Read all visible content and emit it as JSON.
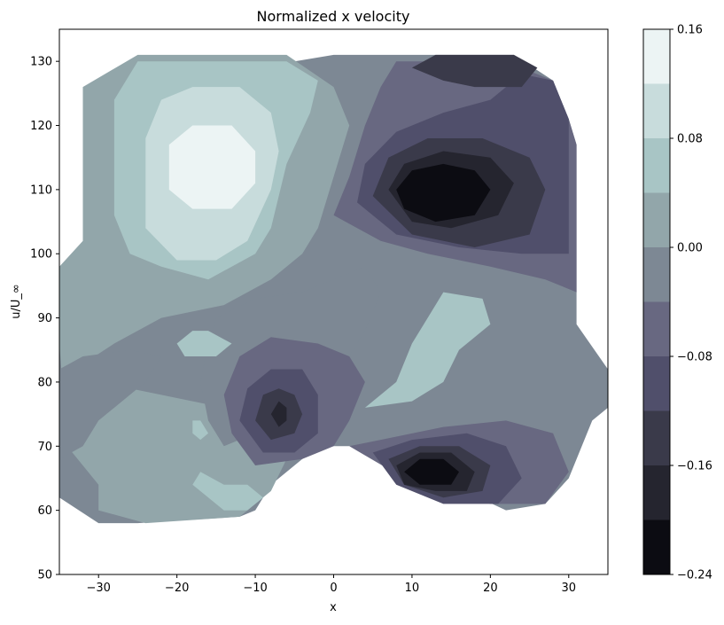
{
  "chart_data": {
    "type": "heatmap",
    "subtype": "filled-contour",
    "title": "Normalized x velocity",
    "xlabel": "x",
    "ylabel": "u/U_∞",
    "xlim": [
      -35,
      35
    ],
    "ylim": [
      50,
      135
    ],
    "xticks": [
      -30,
      -20,
      -10,
      0,
      10,
      20,
      30
    ],
    "yticks": [
      50,
      60,
      70,
      80,
      90,
      100,
      110,
      120,
      130
    ],
    "colormap": "bone",
    "colorbar": {
      "range": [
        -0.24,
        0.16
      ],
      "levels": [
        -0.24,
        -0.2,
        -0.16,
        -0.12,
        -0.08,
        -0.04,
        0.0,
        0.04,
        0.08,
        0.12,
        0.16
      ],
      "tick_values": [
        -0.24,
        -0.16,
        -0.08,
        0.0,
        0.08,
        0.16
      ],
      "tick_labels": [
        "−0.24",
        "−0.16",
        "−0.08",
        "0.00",
        "0.08",
        "0.16"
      ],
      "colors": [
        "#0c0c12",
        "#25252f",
        "#3a3a4a",
        "#504f6b",
        "#686881",
        "#7d8894",
        "#92a6aa",
        "#a8c5c5",
        "#c8dcdc",
        "#ecf4f4"
      ]
    },
    "regions": [
      {
        "name": "domain",
        "value": -0.02,
        "points": [
          [
            -35,
            86
          ],
          [
            -32,
            88
          ],
          [
            -32,
            92
          ],
          [
            -30,
            96
          ],
          [
            -32,
            100
          ],
          [
            -32,
            104
          ],
          [
            -30,
            105
          ],
          [
            -30,
            124
          ],
          [
            -27,
            128
          ],
          [
            -25,
            130
          ],
          [
            -5,
            130
          ],
          [
            0,
            131
          ],
          [
            23,
            131
          ],
          [
            28,
            127
          ],
          [
            30,
            121
          ],
          [
            31,
            117
          ],
          [
            31,
            89
          ],
          [
            35,
            82
          ],
          [
            35,
            76
          ],
          [
            33,
            74
          ],
          [
            30,
            65
          ],
          [
            27,
            61
          ],
          [
            22,
            60
          ],
          [
            15,
            64
          ],
          [
            10,
            64
          ],
          [
            5,
            70
          ],
          [
            0,
            70
          ],
          [
            -2,
            70
          ],
          [
            -8,
            64
          ],
          [
            -10,
            60
          ],
          [
            -12,
            59
          ],
          [
            -25,
            58
          ],
          [
            -30,
            58
          ],
          [
            -35,
            62
          ]
        ]
      },
      {
        "name": "west-band",
        "value": 0.02,
        "points": [
          [
            -35,
            80
          ],
          [
            -33,
            82
          ],
          [
            -28,
            86
          ],
          [
            -22,
            90
          ],
          [
            -14,
            92
          ],
          [
            -8,
            96
          ],
          [
            -4,
            100
          ],
          [
            -2,
            104
          ],
          [
            0,
            112
          ],
          [
            2,
            120
          ],
          [
            0,
            126
          ],
          [
            -6,
            131
          ],
          [
            -25,
            131
          ],
          [
            -32,
            126
          ],
          [
            -32,
            102
          ],
          [
            -35,
            98
          ],
          [
            -35,
            86
          ],
          [
            -34,
            70
          ],
          [
            -30,
            64
          ],
          [
            -30,
            60
          ],
          [
            -24,
            58
          ],
          [
            -12,
            59
          ],
          [
            -8,
            63
          ],
          [
            -6,
            68
          ],
          [
            -8,
            72
          ],
          [
            -14,
            76
          ],
          [
            -22,
            78
          ],
          [
            -30,
            80
          ]
        ]
      },
      {
        "name": "upper-left-plume",
        "value": 0.06,
        "points": [
          [
            -28,
            106
          ],
          [
            -28,
            124
          ],
          [
            -25,
            130
          ],
          [
            -6,
            130
          ],
          [
            -2,
            127
          ],
          [
            -3,
            122
          ],
          [
            -6,
            114
          ],
          [
            -8,
            104
          ],
          [
            -10,
            100
          ],
          [
            -16,
            96
          ],
          [
            -22,
            98
          ],
          [
            -26,
            100
          ]
        ]
      },
      {
        "name": "upper-left-core",
        "value": 0.1,
        "points": [
          [
            -24,
            104
          ],
          [
            -24,
            118
          ],
          [
            -22,
            124
          ],
          [
            -18,
            126
          ],
          [
            -12,
            126
          ],
          [
            -8,
            122
          ],
          [
            -7,
            116
          ],
          [
            -8,
            110
          ],
          [
            -11,
            102
          ],
          [
            -15,
            99
          ],
          [
            -20,
            99
          ]
        ]
      },
      {
        "name": "upper-left-peak",
        "value": 0.14,
        "points": [
          [
            -21,
            110
          ],
          [
            -21,
            117
          ],
          [
            -18,
            120
          ],
          [
            -13,
            120
          ],
          [
            -10,
            116
          ],
          [
            -10,
            111
          ],
          [
            -13,
            107
          ],
          [
            -18,
            107
          ]
        ]
      },
      {
        "name": "east-flank",
        "value": -0.06,
        "points": [
          [
            0,
            106
          ],
          [
            2,
            112
          ],
          [
            4,
            120
          ],
          [
            6,
            126
          ],
          [
            8,
            130
          ],
          [
            22,
            130
          ],
          [
            28,
            127
          ],
          [
            30,
            121
          ],
          [
            31,
            117
          ],
          [
            31,
            94
          ],
          [
            27,
            96
          ],
          [
            20,
            98
          ],
          [
            12,
            100
          ],
          [
            6,
            102
          ]
        ]
      },
      {
        "name": "east-lobe",
        "value": -0.1,
        "points": [
          [
            3,
            108
          ],
          [
            4,
            114
          ],
          [
            8,
            119
          ],
          [
            14,
            122
          ],
          [
            20,
            124
          ],
          [
            24,
            128
          ],
          [
            28,
            127
          ],
          [
            30,
            121
          ],
          [
            30,
            100
          ],
          [
            24,
            100
          ],
          [
            16,
            101
          ],
          [
            8,
            103
          ]
        ]
      },
      {
        "name": "east-core",
        "value": -0.14,
        "points": [
          [
            5,
            109
          ],
          [
            7,
            115
          ],
          [
            12,
            118
          ],
          [
            19,
            118
          ],
          [
            25,
            115
          ],
          [
            27,
            110
          ],
          [
            25,
            103
          ],
          [
            18,
            101
          ],
          [
            10,
            103
          ]
        ]
      },
      {
        "name": "east-inner",
        "value": -0.18,
        "points": [
          [
            7,
            110
          ],
          [
            9,
            114
          ],
          [
            14,
            116
          ],
          [
            20,
            115
          ],
          [
            23,
            111
          ],
          [
            21,
            106
          ],
          [
            15,
            104
          ],
          [
            10,
            105
          ]
        ]
      },
      {
        "name": "east-peak",
        "value": -0.22,
        "points": [
          [
            8,
            110
          ],
          [
            10,
            113
          ],
          [
            14,
            114
          ],
          [
            18,
            113
          ],
          [
            20,
            110
          ],
          [
            18,
            106
          ],
          [
            13,
            105
          ],
          [
            9,
            107
          ]
        ]
      },
      {
        "name": "northeast-band",
        "value": -0.14,
        "points": [
          [
            10,
            129
          ],
          [
            13,
            131
          ],
          [
            23,
            131
          ],
          [
            26,
            129
          ],
          [
            24,
            126
          ],
          [
            18,
            126
          ],
          [
            14,
            127
          ]
        ]
      },
      {
        "name": "mid-right-tongue",
        "value": 0.06,
        "points": [
          [
            12,
            90
          ],
          [
            10,
            86
          ],
          [
            8,
            80
          ],
          [
            4,
            76
          ],
          [
            10,
            77
          ],
          [
            14,
            80
          ],
          [
            16,
            85
          ],
          [
            20,
            89
          ],
          [
            19,
            93
          ],
          [
            14,
            94
          ]
        ]
      },
      {
        "name": "center-trough",
        "value": -0.02,
        "points": [
          [
            -15,
            90
          ],
          [
            -10,
            93
          ],
          [
            -4,
            94
          ],
          [
            0,
            96
          ],
          [
            4,
            98
          ],
          [
            6,
            94
          ],
          [
            4,
            88
          ],
          [
            2,
            84
          ],
          [
            0,
            80
          ],
          [
            -4,
            76
          ],
          [
            -10,
            72
          ],
          [
            -14,
            70
          ],
          [
            -16,
            74
          ],
          [
            -17,
            80
          ],
          [
            -16,
            86
          ]
        ]
      },
      {
        "name": "lower-center-lobe",
        "value": -0.06,
        "points": [
          [
            -14,
            78
          ],
          [
            -12,
            84
          ],
          [
            -8,
            87
          ],
          [
            -2,
            86
          ],
          [
            2,
            84
          ],
          [
            4,
            80
          ],
          [
            2,
            74
          ],
          [
            0,
            70
          ],
          [
            -4,
            68
          ],
          [
            -10,
            67
          ],
          [
            -13,
            72
          ]
        ]
      },
      {
        "name": "lower-center-ring",
        "value": -0.1,
        "points": [
          [
            -12,
            74
          ],
          [
            -11,
            79
          ],
          [
            -8,
            82
          ],
          [
            -4,
            82
          ],
          [
            -2,
            78
          ],
          [
            -2,
            72
          ],
          [
            -5,
            69
          ],
          [
            -9,
            69
          ]
        ]
      },
      {
        "name": "lower-center-core",
        "value": -0.14,
        "points": [
          [
            -10,
            74
          ],
          [
            -9,
            78
          ],
          [
            -7,
            79
          ],
          [
            -5,
            78
          ],
          [
            -4,
            75
          ],
          [
            -5,
            72
          ],
          [
            -8,
            71
          ]
        ]
      },
      {
        "name": "lower-center-peak",
        "value": -0.18,
        "points": [
          [
            -8,
            75
          ],
          [
            -7,
            77
          ],
          [
            -6,
            76
          ],
          [
            -6,
            74
          ],
          [
            -7,
            73
          ]
        ]
      },
      {
        "name": "lower-right-outer",
        "value": -0.06,
        "points": [
          [
            2,
            70
          ],
          [
            6,
            71
          ],
          [
            14,
            73
          ],
          [
            22,
            74
          ],
          [
            28,
            72
          ],
          [
            30,
            66
          ],
          [
            27,
            61
          ],
          [
            20,
            61
          ],
          [
            14,
            63
          ],
          [
            9,
            65
          ]
        ]
      },
      {
        "name": "lower-right-ring",
        "value": -0.1,
        "points": [
          [
            5,
            69
          ],
          [
            10,
            71
          ],
          [
            17,
            72
          ],
          [
            22,
            70
          ],
          [
            24,
            65
          ],
          [
            21,
            61
          ],
          [
            14,
            61
          ],
          [
            8,
            64
          ]
        ]
      },
      {
        "name": "lower-right-core",
        "value": -0.14,
        "points": [
          [
            7,
            68
          ],
          [
            11,
            70
          ],
          [
            16,
            70
          ],
          [
            20,
            67
          ],
          [
            19,
            63
          ],
          [
            14,
            62
          ],
          [
            9,
            64
          ]
        ]
      },
      {
        "name": "lower-right-inner",
        "value": -0.18,
        "points": [
          [
            8,
            67
          ],
          [
            11,
            69
          ],
          [
            15,
            69
          ],
          [
            18,
            66
          ],
          [
            17,
            63
          ],
          [
            13,
            63
          ],
          [
            9,
            64
          ]
        ]
      },
      {
        "name": "lower-right-peak",
        "value": -0.22,
        "points": [
          [
            9,
            66
          ],
          [
            11,
            68
          ],
          [
            14,
            68
          ],
          [
            16,
            66
          ],
          [
            15,
            64
          ],
          [
            11,
            64
          ]
        ]
      },
      {
        "name": "small-plateau-left",
        "value": 0.06,
        "points": [
          [
            -20,
            86
          ],
          [
            -18,
            88
          ],
          [
            -16,
            88
          ],
          [
            -13,
            86
          ],
          [
            -15,
            84
          ],
          [
            -19,
            84
          ]
        ]
      },
      {
        "name": "small-spot",
        "value": 0.06,
        "points": [
          [
            -18,
            72
          ],
          [
            -18,
            74
          ],
          [
            -17,
            74
          ],
          [
            -16,
            72
          ],
          [
            -17,
            71
          ]
        ]
      },
      {
        "name": "lower-left-band",
        "value": 0.06,
        "points": [
          [
            -18,
            64
          ],
          [
            -17,
            66
          ],
          [
            -14,
            64
          ],
          [
            -11,
            64
          ],
          [
            -9,
            62
          ],
          [
            -11,
            60
          ],
          [
            -14,
            60
          ]
        ]
      },
      {
        "name": "west-lower-lobe",
        "value": -0.02,
        "points": [
          [
            -35,
            68
          ],
          [
            -32,
            70
          ],
          [
            -30,
            74
          ],
          [
            -26,
            78
          ],
          [
            -24,
            80
          ],
          [
            -22,
            84
          ],
          [
            -26,
            85
          ],
          [
            -32,
            84
          ],
          [
            -35,
            82
          ]
        ]
      }
    ]
  }
}
